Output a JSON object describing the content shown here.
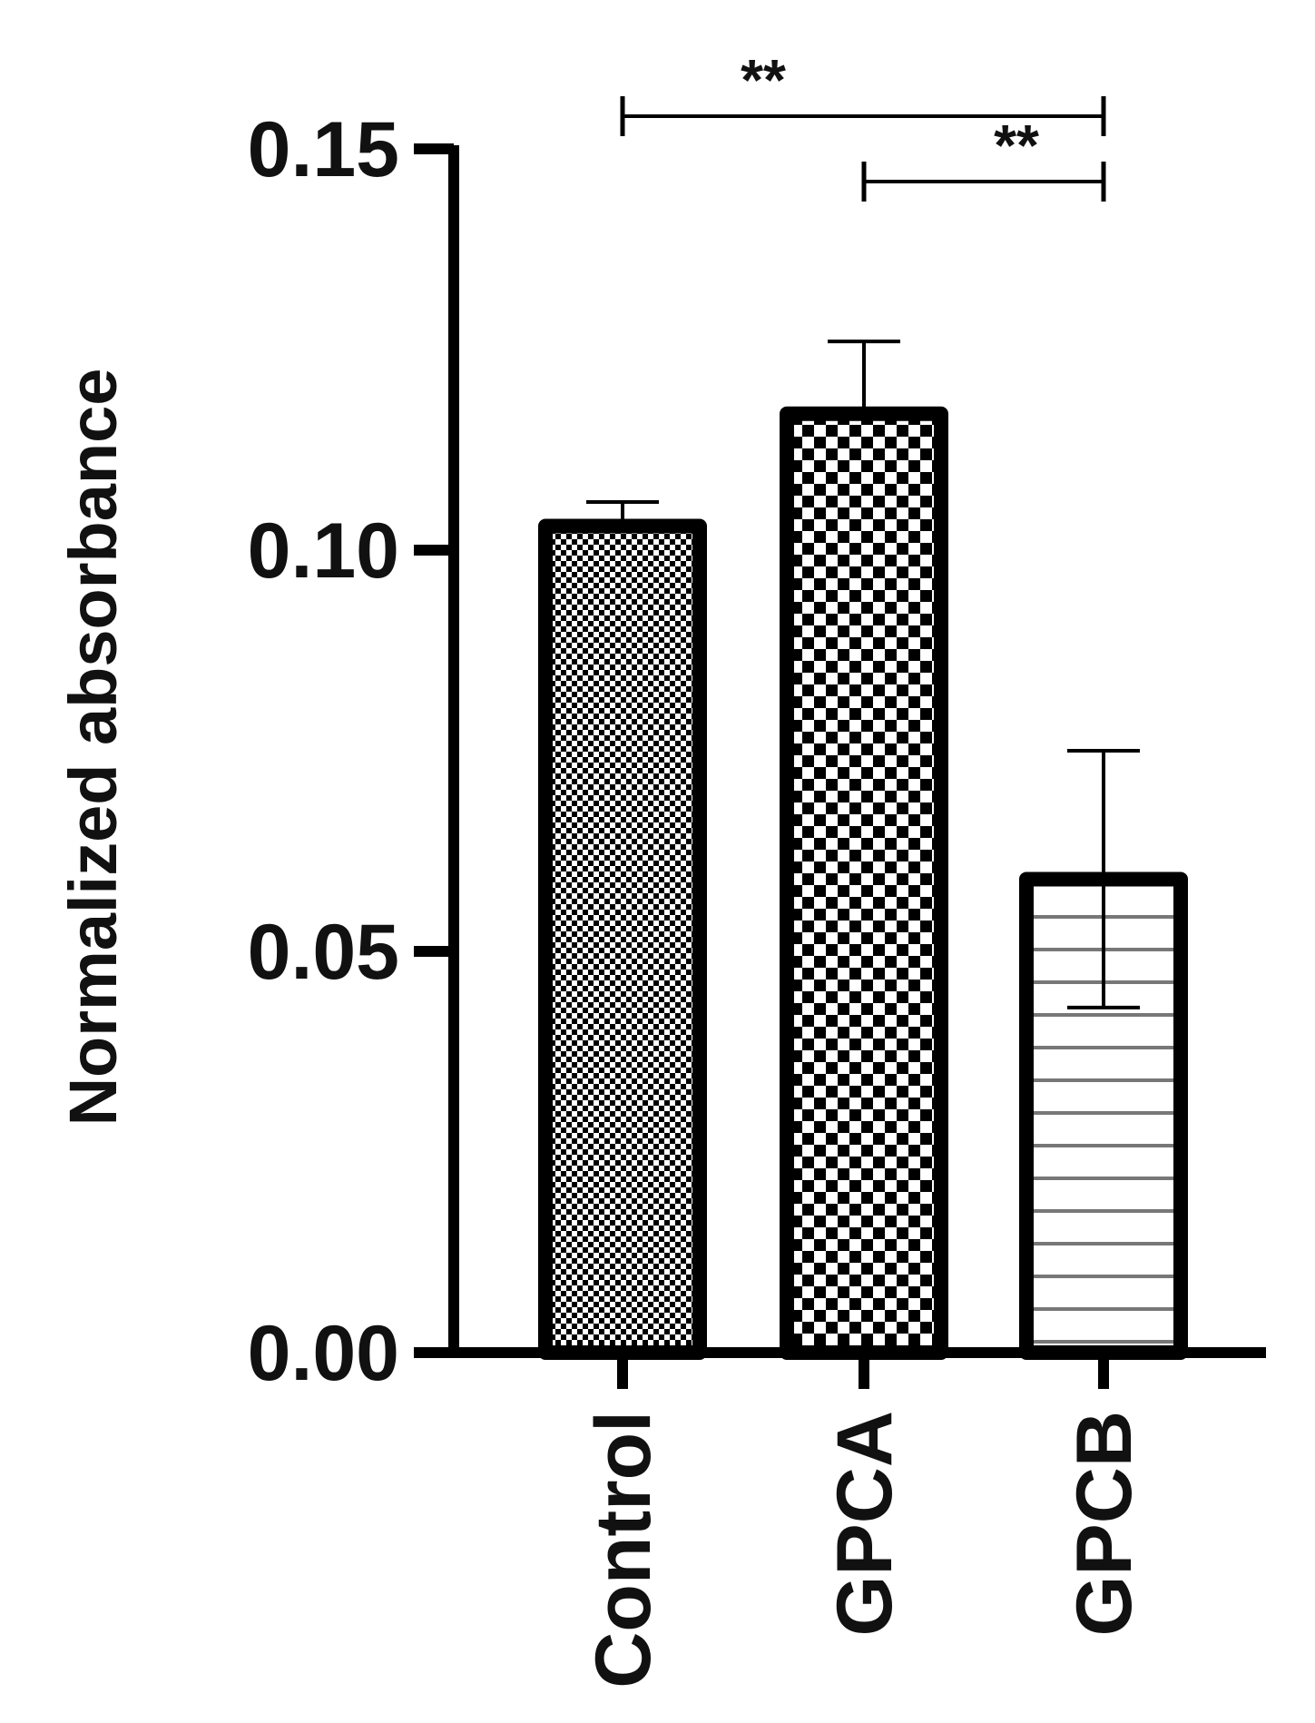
{
  "chart_data": {
    "type": "bar",
    "categories": [
      "Control",
      "GPCA",
      "GPCB"
    ],
    "values": [
      0.103,
      0.117,
      0.059
    ],
    "errors": [
      0.003,
      0.009,
      0.016
    ],
    "ylabel": "Normalized absorbance",
    "ylim": [
      0,
      0.15
    ],
    "yticks": [
      0.0,
      0.05,
      0.1,
      0.15
    ],
    "ytick_labels": [
      "0.00",
      "0.05",
      "0.10",
      "0.15"
    ],
    "fills": [
      "fine-checker",
      "coarse-checker",
      "horizontal-stripes"
    ],
    "significance": [
      {
        "from": "Control",
        "to": "GPCB",
        "label": "**"
      },
      {
        "from": "GPCA",
        "to": "GPCB",
        "label": "**"
      }
    ],
    "grid": false,
    "legend": "none"
  },
  "colors": {
    "ink": "#000000",
    "background": "#ffffff"
  }
}
